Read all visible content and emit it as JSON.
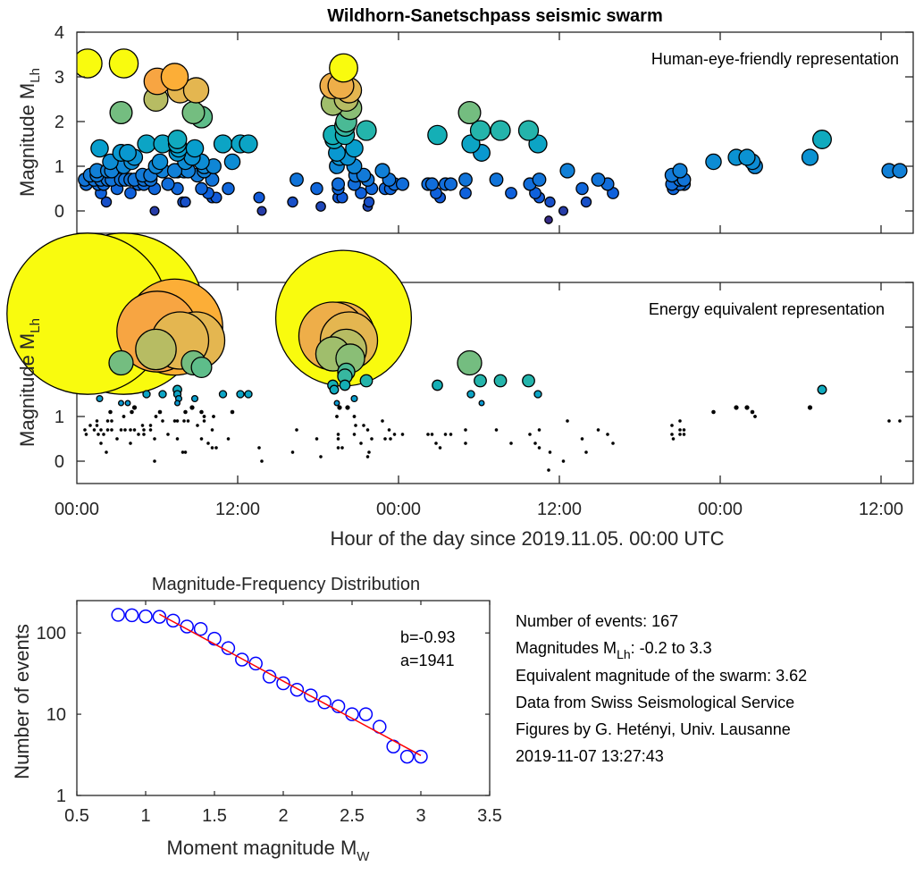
{
  "chart_data": [
    {
      "id": "top",
      "type": "scatter",
      "title": "Wildhorn-Sanetschpass seismic swarm",
      "annotation": "Human-eye-friendly representation",
      "ylabel_main": "Magnitude M",
      "ylabel_sub": "Lh",
      "xlabel": "",
      "xlim_hours": [
        0,
        62.4
      ],
      "ylim": [
        -0.5,
        4
      ],
      "yticks": [
        "0",
        "1",
        "2",
        "3",
        "4"
      ],
      "yticks_values": [
        0,
        1,
        2,
        3,
        4
      ],
      "xticks_hours": [
        0,
        12,
        24,
        36,
        48,
        60
      ],
      "xtick_labels": [],
      "size_mode": "linear",
      "color_scale": "parula (magnitude)"
    },
    {
      "id": "middle",
      "type": "scatter",
      "annotation": "Energy equivalent representation",
      "ylabel_main": "Magnitude M",
      "ylabel_sub": "Lh",
      "xlabel": "Hour of the day since 2019.11.05. 00:00 UTC",
      "xlim_hours": [
        0,
        62.4
      ],
      "ylim": [
        -0.5,
        4
      ],
      "yticks": [
        "0",
        "1",
        "2",
        "3",
        "4"
      ],
      "yticks_values": [
        0,
        1,
        2,
        3,
        4
      ],
      "xticks_hours": [
        0,
        12,
        24,
        36,
        48,
        60
      ],
      "xtick_labels": [
        "00:00",
        "12:00",
        "00:00",
        "12:00",
        "00:00",
        "12:00"
      ],
      "size_mode": "energy",
      "color_scale": "parula (magnitude)"
    },
    {
      "id": "mfd",
      "type": "scatter",
      "title": "Magnitude-Frequency Distribution",
      "xlabel_main": "Moment magnitude M",
      "xlabel_sub": "W",
      "ylabel": "Number of events",
      "yscale": "log",
      "xlim": [
        0.5,
        3.5
      ],
      "ylim": [
        1,
        250
      ],
      "xticks": [
        0.5,
        1,
        1.5,
        2,
        2.5,
        3,
        3.5
      ],
      "xtick_labels": [
        "0.5",
        "1",
        "1.5",
        "2",
        "2.5",
        "3",
        "3.5"
      ],
      "yticks": [
        1,
        10,
        100
      ],
      "ytick_labels": [
        "1",
        "10",
        "100"
      ],
      "annotation_lines": [
        "b=-0.93",
        "a=1941"
      ],
      "series": [
        {
          "name": "cumulative counts",
          "marker": "open-circle",
          "color": "#0000ff",
          "x": [
            0.8,
            0.9,
            1.0,
            1.1,
            1.2,
            1.3,
            1.4,
            1.5,
            1.6,
            1.7,
            1.8,
            1.9,
            2.0,
            2.1,
            2.2,
            2.3,
            2.4,
            2.5,
            2.6,
            2.7,
            2.8,
            2.9,
            3.0
          ],
          "y": [
            167,
            165,
            160,
            158,
            142,
            120,
            112,
            85,
            65,
            47,
            42,
            29,
            24,
            20,
            17,
            14,
            12.5,
            10,
            10,
            7,
            4,
            3,
            3
          ]
        },
        {
          "name": "fit",
          "marker": "line",
          "color": "#ff0000",
          "x": [
            1.1,
            3.0
          ],
          "y": [
            170,
            3.1
          ]
        }
      ]
    }
  ],
  "events": [
    [
      0.8,
      3.3
    ],
    [
      3.5,
      3.3
    ],
    [
      6.0,
      2.9
    ],
    [
      7.3,
      3.0
    ],
    [
      7.7,
      2.7
    ],
    [
      8.9,
      2.7
    ],
    [
      5.9,
      2.5
    ],
    [
      3.3,
      2.2
    ],
    [
      8.7,
      2.2
    ],
    [
      9.3,
      2.1
    ],
    [
      19.9,
      3.2
    ],
    [
      19.1,
      2.8
    ],
    [
      19.7,
      2.8
    ],
    [
      20.3,
      2.7
    ],
    [
      20.1,
      2.5
    ],
    [
      19.1,
      2.4
    ],
    [
      20.4,
      2.3
    ],
    [
      20.1,
      2.0
    ],
    [
      20.0,
      1.9
    ],
    [
      21.6,
      1.8
    ],
    [
      19.1,
      1.7
    ],
    [
      20.0,
      1.7
    ],
    [
      19.2,
      1.6
    ],
    [
      26.9,
      1.7
    ],
    [
      29.3,
      2.2
    ],
    [
      30.1,
      1.8
    ],
    [
      31.6,
      1.8
    ],
    [
      33.7,
      1.8
    ],
    [
      29.4,
      1.5
    ],
    [
      34.4,
      1.5
    ],
    [
      30.2,
      1.3
    ],
    [
      55.6,
      1.6
    ],
    [
      1.7,
      1.4
    ],
    [
      3.3,
      1.3
    ],
    [
      3.8,
      1.3
    ],
    [
      5.2,
      1.5
    ],
    [
      6.4,
      1.5
    ],
    [
      7.5,
      1.6
    ],
    [
      7.5,
      1.5
    ],
    [
      7.6,
      1.4
    ],
    [
      7.5,
      1.3
    ],
    [
      8.8,
      1.4
    ],
    [
      10.9,
      1.5
    ],
    [
      12.2,
      1.5
    ],
    [
      12.8,
      1.5
    ],
    [
      2.5,
      1.1
    ],
    [
      4.3,
      1.2
    ],
    [
      4.1,
      1.1
    ],
    [
      5.9,
      1.0
    ],
    [
      6.2,
      1.1
    ],
    [
      8.1,
      1.1
    ],
    [
      8.6,
      1.2
    ],
    [
      9.3,
      1.1
    ],
    [
      9.5,
      1.0
    ],
    [
      10.2,
      1.0
    ],
    [
      11.6,
      1.1
    ],
    [
      19.4,
      1.3
    ],
    [
      20.7,
      1.4
    ],
    [
      19.6,
      1.2
    ],
    [
      20.2,
      1.2
    ],
    [
      20.7,
      1.0
    ],
    [
      19.4,
      1.0
    ],
    [
      1.5,
      0.9
    ],
    [
      2.3,
      0.9
    ],
    [
      2.6,
      0.9
    ],
    [
      3.5,
      1.0
    ],
    [
      7.5,
      0.9
    ],
    [
      8.0,
      0.9
    ],
    [
      8.3,
      0.9
    ],
    [
      9.5,
      0.9
    ],
    [
      6.4,
      0.9
    ],
    [
      1.0,
      0.8
    ],
    [
      1.5,
      0.8
    ],
    [
      4.9,
      0.8
    ],
    [
      5.5,
      0.8
    ],
    [
      9.0,
      0.8
    ],
    [
      22.8,
      0.9
    ],
    [
      0.6,
      0.7
    ],
    [
      1.3,
      0.7
    ],
    [
      1.8,
      0.7
    ],
    [
      2.3,
      0.7
    ],
    [
      2.6,
      0.7
    ],
    [
      3.3,
      0.7
    ],
    [
      3.6,
      0.7
    ],
    [
      4.0,
      0.7
    ],
    [
      4.3,
      0.7
    ],
    [
      5.0,
      0.7
    ],
    [
      5.5,
      0.7
    ],
    [
      7.3,
      0.9
    ],
    [
      10.1,
      0.7
    ],
    [
      16.4,
      0.7
    ],
    [
      20.8,
      0.8
    ],
    [
      21.4,
      0.8
    ],
    [
      21.7,
      0.7
    ],
    [
      23.3,
      0.7
    ],
    [
      0.7,
      0.6
    ],
    [
      1.6,
      0.6
    ],
    [
      4.6,
      0.6
    ],
    [
      5.0,
      0.6
    ],
    [
      6.8,
      0.6
    ],
    [
      19.5,
      0.6
    ],
    [
      20.7,
      0.6
    ],
    [
      23.7,
      0.6
    ],
    [
      24.3,
      0.6
    ],
    [
      26.2,
      0.6
    ],
    [
      26.5,
      0.6
    ],
    [
      27.5,
      0.6
    ],
    [
      27.9,
      0.6
    ],
    [
      29.0,
      0.7
    ],
    [
      31.3,
      0.7
    ],
    [
      36.6,
      0.9
    ],
    [
      45.0,
      0.9
    ],
    [
      54.7,
      1.2
    ],
    [
      47.5,
      1.1
    ],
    [
      49.2,
      1.2
    ],
    [
      50.0,
      1.2
    ],
    [
      50.4,
      1.1
    ],
    [
      50.6,
      1.0
    ],
    [
      60.6,
      0.9
    ],
    [
      61.4,
      0.9
    ],
    [
      1.8,
      0.4
    ],
    [
      2.0,
      0.6
    ],
    [
      3.0,
      0.5
    ],
    [
      4.0,
      0.4
    ],
    [
      5.8,
      0.5
    ],
    [
      7.5,
      0.5
    ],
    [
      9.3,
      0.5
    ],
    [
      9.8,
      0.4
    ],
    [
      10.1,
      0.3
    ],
    [
      10.4,
      0.3
    ],
    [
      11.3,
      0.5
    ],
    [
      13.6,
      0.3
    ],
    [
      17.9,
      0.5
    ],
    [
      19.5,
      0.5
    ],
    [
      22.0,
      0.5
    ],
    [
      23.0,
      0.5
    ],
    [
      23.4,
      0.5
    ],
    [
      29.0,
      0.4
    ],
    [
      33.8,
      0.6
    ],
    [
      34.2,
      0.4
    ],
    [
      38.9,
      0.7
    ],
    [
      39.6,
      0.6
    ],
    [
      45.0,
      0.7
    ],
    [
      45.3,
      0.6
    ],
    [
      45.0,
      0.6
    ],
    [
      45.3,
      0.7
    ],
    [
      44.4,
      0.6
    ],
    [
      2.2,
      0.2
    ],
    [
      7.9,
      0.2
    ],
    [
      8.1,
      0.2
    ],
    [
      13.8,
      0.0
    ],
    [
      5.8,
      0.0
    ],
    [
      16.1,
      0.2
    ],
    [
      18.2,
      0.1
    ],
    [
      19.5,
      0.3
    ],
    [
      19.8,
      0.3
    ],
    [
      21.2,
      0.4
    ],
    [
      21.7,
      0.1
    ],
    [
      21.8,
      0.2
    ],
    [
      34.5,
      0.3
    ],
    [
      26.8,
      0.4
    ],
    [
      27.1,
      0.3
    ],
    [
      32.4,
      0.4
    ],
    [
      35.2,
      -0.2
    ],
    [
      37.7,
      0.5
    ],
    [
      38.0,
      0.2
    ],
    [
      44.4,
      0.8
    ],
    [
      44.5,
      0.5
    ],
    [
      34.5,
      0.7
    ],
    [
      35.3,
      0.2
    ],
    [
      36.3,
      0.0
    ],
    [
      40.0,
      0.4
    ]
  ],
  "info_panel": {
    "line1": "Number of events: 167",
    "line2_pre": "Magnitudes M",
    "line2_sub": "Lh",
    "line2_post": ": -0.2 to 3.3",
    "line3": "Equivalent magnitude of the swarm: 3.62",
    "line4": "Data from Swiss Seismological Service",
    "line5": "Figures by G. Hetényi, Univ. Lausanne",
    "line6": "2019-11-07 13:27:43"
  }
}
